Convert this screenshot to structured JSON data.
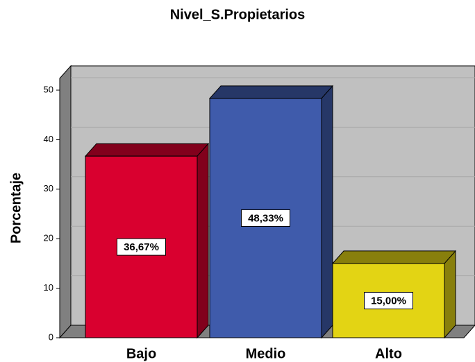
{
  "chart_data": {
    "type": "bar",
    "title": "Nivel_S.Propietarios",
    "y_label": "Porcentaje",
    "categories": [
      "Bajo",
      "Medio",
      "Alto"
    ],
    "values": [
      36.67,
      48.33,
      15.0
    ],
    "value_labels": [
      "36,67%",
      "48,33%",
      "15,00%"
    ],
    "colors": [
      "#d9002f",
      "#3f5bab",
      "#e3d414"
    ],
    "ylim": [
      0,
      50
    ],
    "yticks": [
      0,
      10,
      20,
      30,
      40,
      50
    ],
    "grid": true
  }
}
